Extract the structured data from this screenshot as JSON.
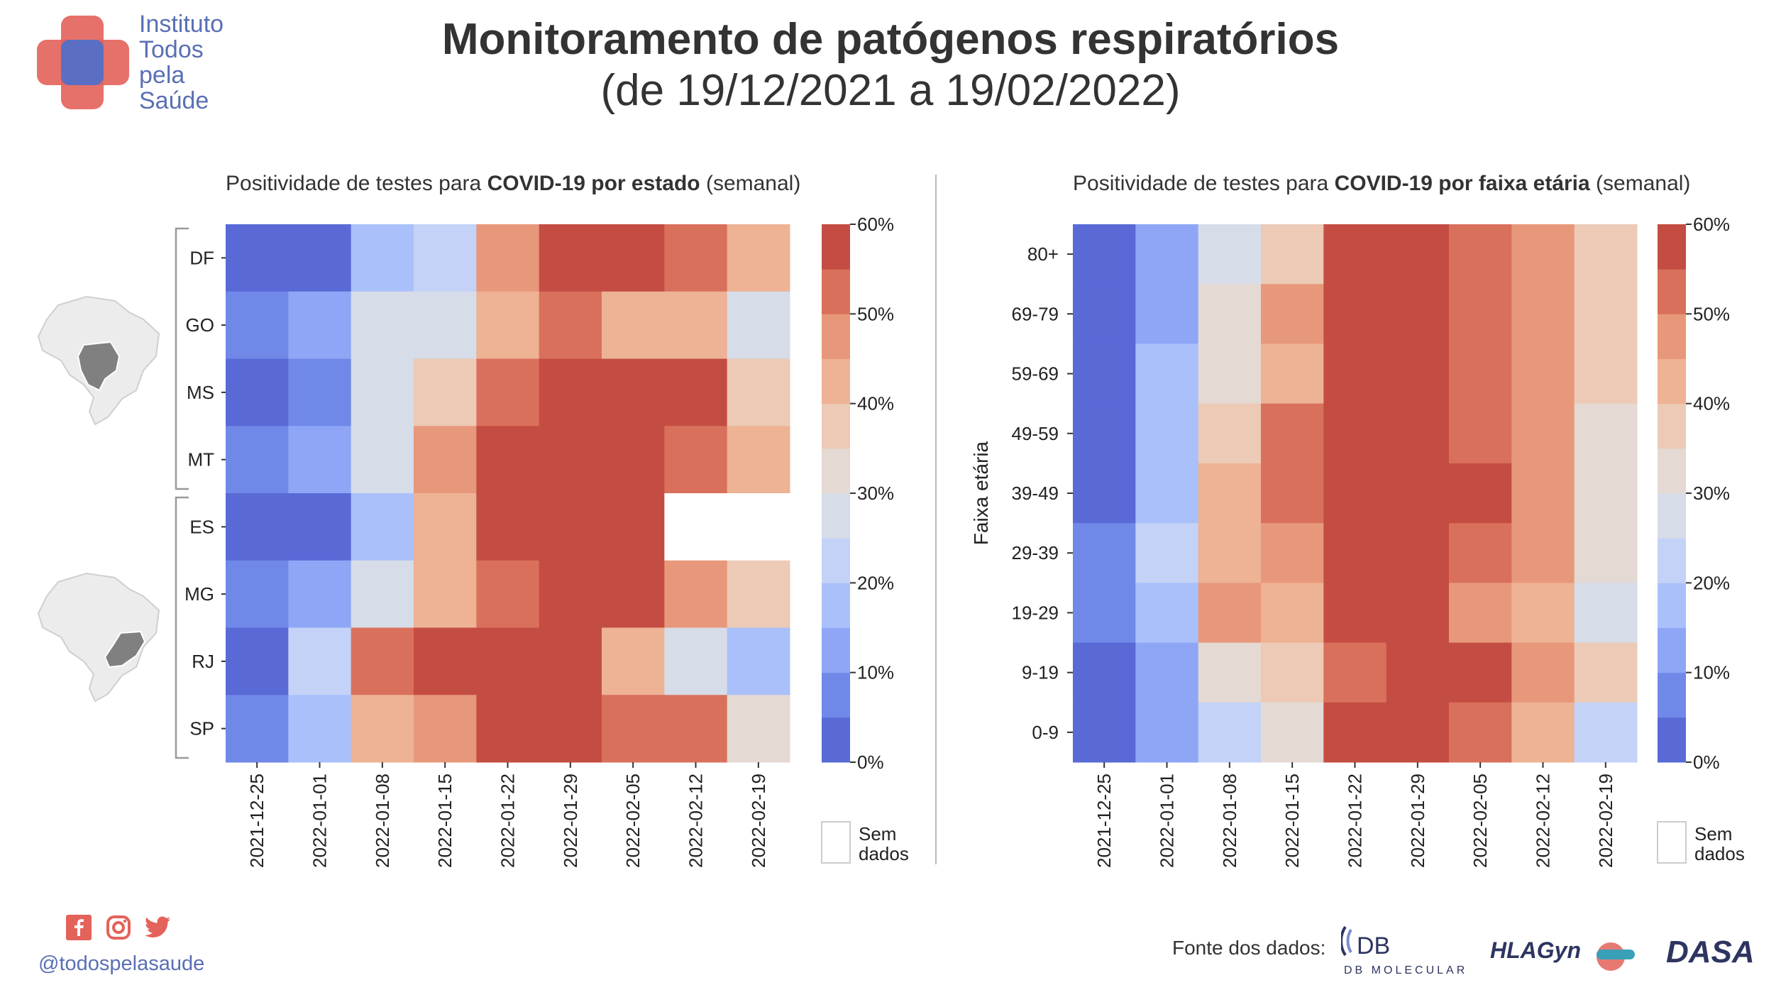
{
  "header": {
    "title": "Monitoramento de patógenos respiratórios",
    "subtitle": "(de 19/12/2021 a 19/02/2022)"
  },
  "logo": {
    "lines": [
      "Instituto",
      "Todos",
      "pela",
      "Saúde"
    ],
    "colors": {
      "red": "#e3625a",
      "blue": "#5a6fc4"
    }
  },
  "footer": {
    "handle": "@todospelasaude",
    "social_icons": [
      "facebook-icon",
      "instagram-icon",
      "twitter-icon"
    ],
    "social_color": "#e3625a",
    "fonte_label": "Fonte dos dados:",
    "sponsors": [
      "DB MOLECULAR",
      "HLAGyn",
      "DASA"
    ]
  },
  "colorscale": {
    "bins": [
      "#5969d6",
      "#7088e8",
      "#8ea6f5",
      "#a9c0fb",
      "#c3d2f6",
      "#d6dce8",
      "#e4d9d3",
      "#eccab5",
      "#eeb295",
      "#e8987a",
      "#d9705c",
      "#c44d43"
    ],
    "ticks": [
      "0%",
      "10%",
      "20%",
      "30%",
      "40%",
      "50%",
      "60%"
    ],
    "no_data_label_1": "Sem",
    "no_data_label_2": "dados",
    "no_data_color": "#ffffff"
  },
  "chart_data": [
    {
      "type": "heatmap",
      "title_prefix": "Positividade de testes para ",
      "title_bold": "COVID-19 por estado",
      "title_suffix": " (semanal)",
      "unit": "%",
      "x": [
        "2021-12-25",
        "2022-01-01",
        "2022-01-08",
        "2022-01-15",
        "2022-01-22",
        "2022-01-29",
        "2022-02-05",
        "2022-02-12",
        "2022-02-19"
      ],
      "y": [
        "DF",
        "GO",
        "MS",
        "MT",
        "ES",
        "MG",
        "RJ",
        "SP"
      ],
      "ylabel": "",
      "zlim": [
        0,
        60
      ],
      "region_groups": [
        {
          "rows": [
            "DF",
            "GO",
            "MS",
            "MT"
          ],
          "map_icon": "brazil-map-center-west-icon"
        },
        {
          "rows": [
            "ES",
            "MG",
            "RJ",
            "SP"
          ],
          "map_icon": "brazil-map-southeast-icon"
        }
      ],
      "values": [
        [
          3,
          3,
          17,
          22,
          47,
          58,
          58,
          53,
          43
        ],
        [
          8,
          13,
          28,
          28,
          42,
          52,
          42,
          42,
          28
        ],
        [
          3,
          8,
          28,
          38,
          52,
          58,
          58,
          58,
          38
        ],
        [
          8,
          13,
          28,
          47,
          58,
          58,
          58,
          53,
          43
        ],
        [
          3,
          3,
          17,
          42,
          58,
          58,
          58,
          null,
          null
        ],
        [
          8,
          13,
          28,
          42,
          53,
          58,
          58,
          47,
          38
        ],
        [
          3,
          22,
          53,
          58,
          58,
          58,
          42,
          28,
          17
        ],
        [
          8,
          17,
          42,
          47,
          58,
          58,
          53,
          53,
          33
        ]
      ]
    },
    {
      "type": "heatmap",
      "title_prefix": "Positividade de testes para ",
      "title_bold": "COVID-19 por faixa etária",
      "title_suffix": " (semanal)",
      "unit": "%",
      "x": [
        "2021-12-25",
        "2022-01-01",
        "2022-01-08",
        "2022-01-15",
        "2022-01-22",
        "2022-01-29",
        "2022-02-05",
        "2022-02-12",
        "2022-02-19"
      ],
      "y": [
        "80+",
        "69-79",
        "59-69",
        "49-59",
        "39-49",
        "29-39",
        "19-29",
        "9-19",
        "0-9"
      ],
      "ylabel": "Faixa etária",
      "zlim": [
        0,
        60
      ],
      "values": [
        [
          3,
          13,
          28,
          38,
          58,
          58,
          53,
          47,
          38
        ],
        [
          3,
          13,
          33,
          47,
          58,
          58,
          53,
          47,
          38
        ],
        [
          3,
          17,
          33,
          42,
          58,
          58,
          53,
          47,
          38
        ],
        [
          3,
          17,
          38,
          53,
          58,
          58,
          53,
          47,
          33
        ],
        [
          3,
          17,
          42,
          53,
          58,
          58,
          58,
          47,
          33
        ],
        [
          8,
          22,
          42,
          47,
          58,
          58,
          53,
          47,
          33
        ],
        [
          8,
          17,
          47,
          42,
          58,
          58,
          47,
          42,
          28
        ],
        [
          3,
          13,
          33,
          38,
          53,
          58,
          58,
          47,
          38
        ],
        [
          3,
          13,
          22,
          33,
          58,
          58,
          53,
          42,
          22
        ]
      ]
    }
  ]
}
